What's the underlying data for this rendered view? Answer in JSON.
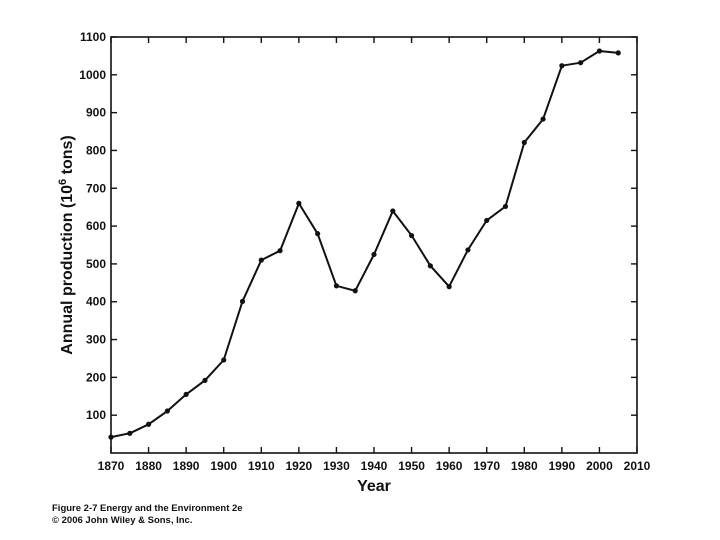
{
  "caption": {
    "line1": "Figure 2-7  Energy and the Environment 2e",
    "line2": "© 2006 John Wiley & Sons, Inc."
  },
  "chart_data": {
    "type": "line",
    "title": "",
    "xlabel": "Year",
    "ylabel": "Annual production (10^6 tons)",
    "ylabel_parts": {
      "pre": "Annual production (10",
      "sup": "6",
      "post": " tons)"
    },
    "xlim": [
      1870,
      2010
    ],
    "ylim": [
      0,
      1100
    ],
    "x_ticks": [
      1870,
      1880,
      1890,
      1900,
      1910,
      1920,
      1930,
      1940,
      1950,
      1960,
      1970,
      1980,
      1990,
      2000,
      2010
    ],
    "y_ticks": [
      100,
      200,
      300,
      400,
      500,
      600,
      700,
      800,
      900,
      1000,
      1100
    ],
    "grid": false,
    "legend": "none",
    "series": [
      {
        "x": [
          1870,
          1875,
          1880,
          1885,
          1890,
          1895,
          1900,
          1905,
          1910,
          1915,
          1920,
          1925,
          1930,
          1935,
          1940,
          1945,
          1950,
          1955,
          1960,
          1965,
          1970,
          1975,
          1980,
          1985,
          1990,
          1995,
          2000,
          2005
        ],
        "y": [
          42,
          52,
          76,
          111,
          155,
          192,
          246,
          401,
          510,
          535,
          660,
          580,
          442,
          429,
          525,
          640,
          575,
          495,
          440,
          537,
          615,
          652,
          821,
          883,
          1024,
          1032,
          1063,
          1058
        ]
      }
    ]
  }
}
